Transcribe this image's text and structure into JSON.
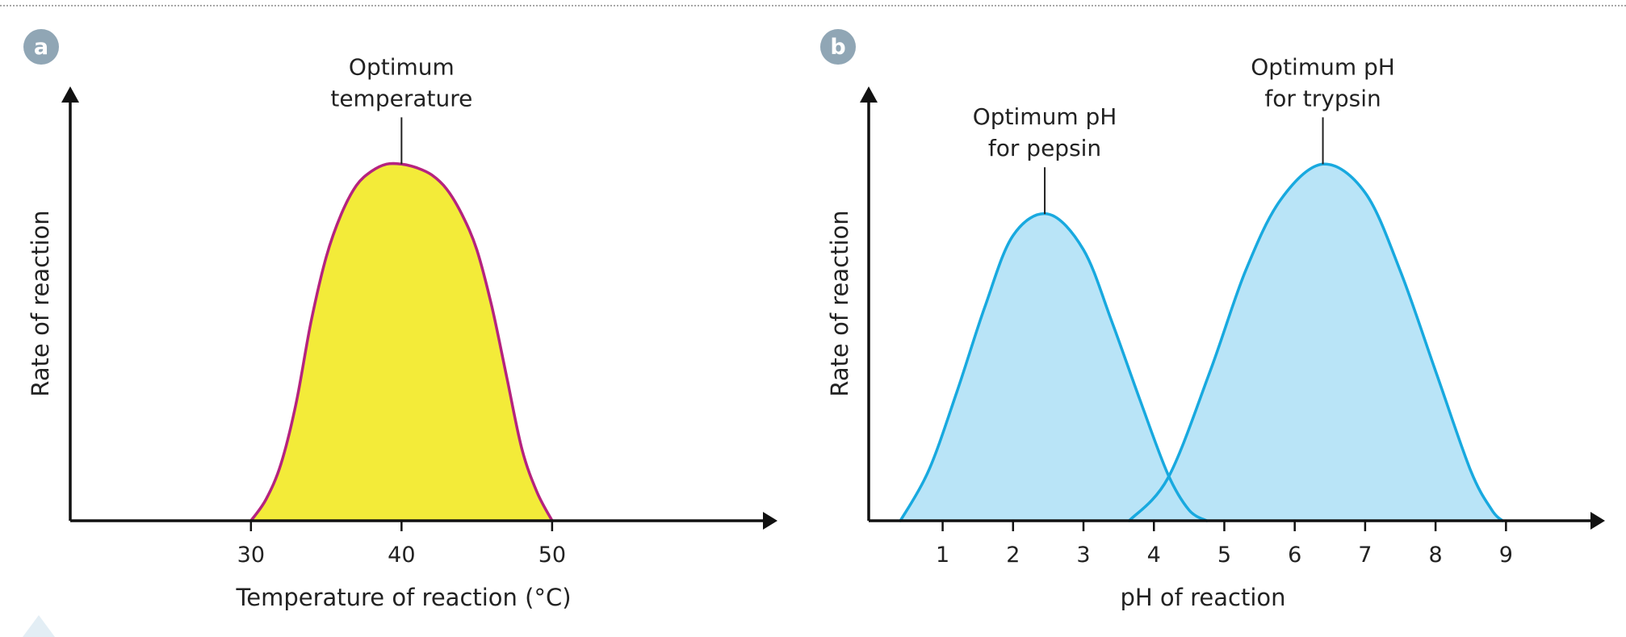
{
  "chart_data": [
    {
      "panel": "a",
      "type": "area",
      "xlabel": "Temperature of reaction (°C)",
      "ylabel": "Rate of reaction",
      "xlim": [
        18,
        64
      ],
      "ylim": [
        0,
        1.2
      ],
      "ticks": [
        30,
        40,
        50
      ],
      "tick_labels": [
        "30",
        "40",
        "50"
      ],
      "colors": {
        "fill": "#f2ea2e",
        "stroke": "#b5237f"
      },
      "series": [
        {
          "x": [
            30,
            31,
            32,
            33,
            34,
            35,
            36,
            37,
            38,
            39,
            40,
            41,
            42,
            43,
            44,
            45,
            46,
            47,
            48,
            49,
            50
          ],
          "y": [
            0,
            0.06,
            0.16,
            0.33,
            0.56,
            0.74,
            0.86,
            0.94,
            0.98,
            1.0,
            1.0,
            0.99,
            0.97,
            0.93,
            0.86,
            0.76,
            0.6,
            0.4,
            0.2,
            0.08,
            0
          ]
        }
      ],
      "annotations": [
        {
          "lines": [
            "Optimum",
            "temperature"
          ],
          "x": 40,
          "y": 1.0
        }
      ]
    },
    {
      "panel": "b",
      "type": "area",
      "xlabel": "pH of reaction",
      "ylabel": "Rate of reaction",
      "xlim": [
        -0.05,
        10.2
      ],
      "ylim": [
        0,
        1.2
      ],
      "ticks": [
        1,
        2,
        3,
        4,
        5,
        6,
        7,
        8,
        9
      ],
      "tick_labels": [
        "1",
        "2",
        "3",
        "4",
        "5",
        "6",
        "7",
        "8",
        "9"
      ],
      "colors": {
        "fill": "#b5e3f7",
        "stroke": "#18a9df"
      },
      "series": [
        {
          "x": [
            0.4,
            0.8,
            1.2,
            1.6,
            2.0,
            2.5,
            3.0,
            3.4,
            3.8,
            4.2,
            4.5,
            4.75
          ],
          "y": [
            0,
            0.14,
            0.36,
            0.6,
            0.8,
            0.86,
            0.76,
            0.56,
            0.34,
            0.13,
            0.03,
            0
          ]
        },
        {
          "x": [
            3.65,
            4.2,
            4.8,
            5.3,
            5.8,
            6.4,
            7.0,
            7.5,
            8.0,
            8.5,
            8.8,
            8.95
          ],
          "y": [
            0,
            0.12,
            0.42,
            0.7,
            0.9,
            1.0,
            0.92,
            0.7,
            0.42,
            0.14,
            0.03,
            0
          ]
        }
      ],
      "annotations": [
        {
          "lines": [
            "Optimum pH",
            "for pepsin"
          ],
          "x": 2.45,
          "y": 0.86
        },
        {
          "lines": [
            "Optimum pH",
            "for trypsin"
          ],
          "x": 6.4,
          "y": 1.0
        }
      ]
    }
  ]
}
